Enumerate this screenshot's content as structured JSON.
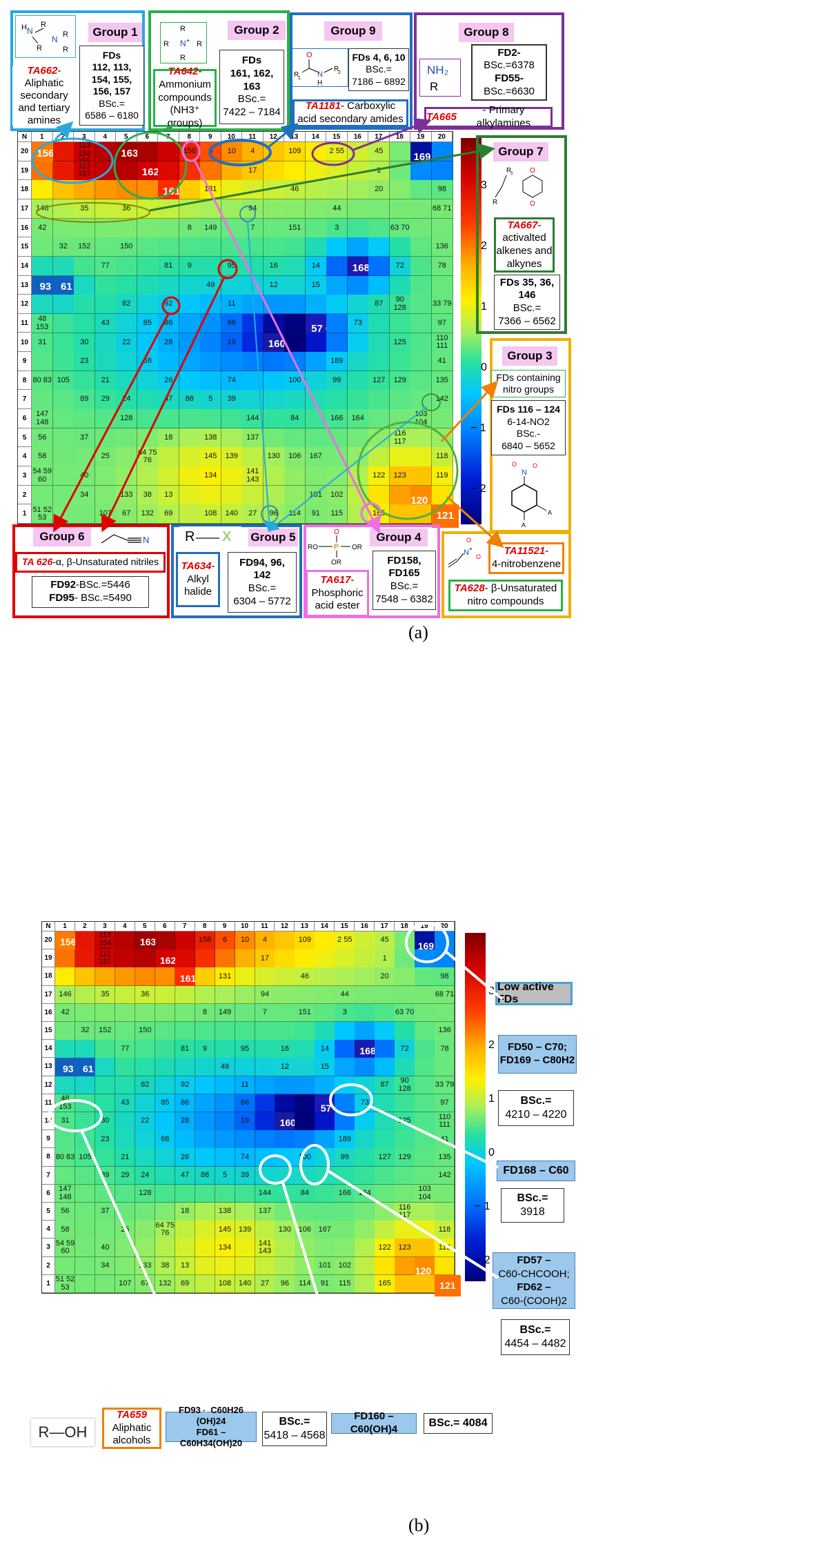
{
  "captions": {
    "a": "(a)",
    "b": "(b)"
  },
  "grid_cells": [
    [
      "N",
      "1",
      "2",
      "3",
      "4",
      "5",
      "6",
      "7",
      "8",
      "9",
      "10",
      "11",
      "12",
      "13",
      "14",
      "15",
      "16",
      "17",
      "18",
      "19",
      "20"
    ],
    [
      "20",
      "156",
      "",
      "113 154 155",
      "",
      "163",
      "",
      "",
      "158",
      "6",
      "10",
      "4",
      "",
      "109",
      "",
      "2 55",
      "",
      "45",
      "",
      "169 50",
      ""
    ],
    [
      "19",
      "",
      "",
      "112 157",
      "",
      "",
      "162",
      "",
      "",
      "",
      "",
      "17",
      "",
      "",
      "",
      "",
      "",
      "1",
      "",
      "",
      ""
    ],
    [
      "18",
      "",
      "",
      "",
      "",
      "",
      "",
      "161",
      "",
      "131",
      "",
      "",
      "",
      "46",
      "",
      "",
      "",
      "20",
      "",
      "",
      "98"
    ],
    [
      "17",
      "146",
      "",
      "35",
      "",
      "36",
      "",
      "",
      "",
      "",
      "",
      "94",
      "",
      "",
      "",
      "44",
      "",
      "",
      "",
      "",
      "68 71"
    ],
    [
      "16",
      "42",
      "",
      "",
      "",
      "",
      "",
      "",
      "8",
      "149",
      "",
      "7",
      "",
      "151",
      "",
      "3",
      "",
      "",
      "63 70",
      "",
      ""
    ],
    [
      "15",
      "",
      "32",
      "152",
      "",
      "150",
      "",
      "",
      "",
      "",
      "",
      "",
      "",
      "",
      "",
      "",
      "",
      "",
      "",
      "",
      "136"
    ],
    [
      "14",
      "",
      "",
      "",
      "77",
      "",
      "",
      "81",
      "9",
      "",
      "95",
      "",
      "16",
      "",
      "14",
      "",
      "168",
      "",
      "72",
      "",
      "78"
    ],
    [
      "13",
      "93",
      "61",
      "",
      "",
      "",
      "",
      "",
      "",
      "49",
      "",
      "",
      "12",
      "",
      "15",
      "",
      "",
      "",
      "",
      "",
      ""
    ],
    [
      "12",
      "",
      "",
      "",
      "",
      "82",
      "",
      "92",
      "",
      "",
      "11",
      "",
      "",
      "",
      "",
      "",
      "",
      "87",
      "90 128",
      "",
      "33 79"
    ],
    [
      "11",
      "48 153",
      "",
      "",
      "43",
      "",
      "85",
      "86",
      "",
      "",
      "66",
      "",
      "",
      "",
      "57 62",
      "",
      "73",
      "",
      "",
      "",
      "97"
    ],
    [
      "10",
      "31",
      "",
      "30",
      "",
      "22",
      "",
      "28",
      "",
      "",
      "19",
      "",
      "160",
      "",
      "",
      "",
      "",
      "",
      "125",
      "",
      "110 111"
    ],
    [
      "9",
      "",
      "",
      "23",
      "",
      "",
      "68",
      "",
      "",
      "",
      "",
      "",
      "",
      "",
      "",
      "189",
      "",
      "",
      "",
      "",
      "41"
    ],
    [
      "8",
      "80 83",
      "105",
      "",
      "21",
      "",
      "",
      "26",
      "",
      "",
      "74",
      "",
      "",
      "100",
      "",
      "99",
      "",
      "127",
      "129",
      "",
      "135"
    ],
    [
      "7",
      "",
      "",
      "89",
      "29",
      "24",
      "",
      "47",
      "88",
      "5",
      "39",
      "",
      "",
      "",
      "",
      "",
      "",
      "",
      "",
      "",
      "142"
    ],
    [
      "6",
      "147 148",
      "",
      "",
      "",
      "128",
      "",
      "",
      "",
      "",
      "",
      "144",
      "",
      "84",
      "",
      "166",
      "164",
      "",
      "",
      "103 104",
      ""
    ],
    [
      "5",
      "56",
      "",
      "37",
      "",
      "",
      "",
      "18",
      "",
      "138",
      "",
      "137",
      "",
      "",
      "",
      "",
      "",
      "",
      "116 117",
      "",
      ""
    ],
    [
      "4",
      "58",
      "",
      "",
      "25",
      "",
      "64 75 76",
      "",
      "",
      "145",
      "139",
      "",
      "130",
      "106",
      "167",
      "",
      "",
      "",
      "",
      "",
      "118"
    ],
    [
      "3",
      "54 59 60",
      "",
      "40",
      "",
      "",
      "",
      "",
      "",
      "134",
      "",
      "141 143",
      "",
      "",
      "",
      "",
      "",
      "122",
      "123",
      "",
      "119"
    ],
    [
      "2",
      "",
      "",
      "34",
      "",
      "133",
      "38",
      "13",
      "",
      "",
      "",
      "",
      "",
      "",
      "101",
      "102",
      "",
      "",
      "",
      "120 124",
      ""
    ],
    [
      "1",
      "51 52 53",
      "",
      "",
      "107",
      "67",
      "132",
      "69",
      "",
      "108",
      "140",
      "27",
      "96",
      "114",
      "91",
      "115",
      "",
      "165",
      "",
      "",
      "121"
    ]
  ],
  "colorbar": {
    "ticks": [
      "3",
      "2",
      "1",
      "0",
      "− 1",
      "− 2"
    ],
    "min": -2.6,
    "max": 3.9
  },
  "panel_a": {
    "group1": {
      "tag": "Group 1",
      "fds": [
        "FDs",
        "112, 113,",
        "154, 155,",
        "156, 157"
      ],
      "bsc": [
        "BSc.=",
        "6586 – 6180"
      ],
      "ta_code": "TA662",
      "ta_text": [
        "-",
        "Aliphatic",
        "secondary",
        "and tertiary",
        "amines"
      ]
    },
    "group2": {
      "tag": "Group 2",
      "fds": [
        "FDs",
        "161, 162,",
        "163"
      ],
      "bsc": [
        "BSc.=",
        "7422 – 7184"
      ],
      "ta_code": "TA642",
      "ta_text": [
        "-",
        "Ammonium",
        "compounds",
        "(NH3⁺ groups)"
      ]
    },
    "group9": {
      "tag": "Group 9",
      "fds": "FDs 4, 6, 10",
      "bsc": [
        "BSc.=",
        "7186 – 6892"
      ],
      "ta_code": "TA1181",
      "ta_text": [
        "- Carboxylic",
        "acid secondary amides"
      ]
    },
    "group8": {
      "tag": "Group 8",
      "fd_a": "FD2-",
      "bsc_a": "BSc.=6378",
      "fd_b": "FD55-",
      "bsc_b": "BSc.=6630",
      "ta_code": "TA665",
      "ta_text": "- Primary alkylamines",
      "struct_label": "NH₂",
      "struct_r": "R"
    },
    "group7": {
      "tag": "Group 7",
      "ta_code": "TA667",
      "ta_text": [
        "-",
        "activalted",
        "alkenes and",
        "alkynes"
      ],
      "fds": [
        "FDs 35, 36,",
        "146"
      ],
      "bsc": [
        "BSc.=",
        "7366 – 6562"
      ]
    },
    "group3": {
      "tag": "Group 3",
      "desc": [
        "FDs containing",
        "nitro groups"
      ],
      "fds": "FDs 116 – 124",
      "sub": "6-14-NO2",
      "bsc": [
        "BSc.-",
        "6840 – 5652"
      ]
    },
    "group6": {
      "tag": "Group 6",
      "ta_code": "TA 626",
      "ta_text": "-α, β-Unsaturated  nitriles",
      "fd_a": "FD92",
      "bsc_a": "-BSc.=5446",
      "fd_b": "FD95",
      "bsc_b": "- BSc.=5490",
      "struct_n": "N"
    },
    "group5": {
      "tag": "Group 5",
      "ta_code": "TA634",
      "ta_text": [
        "-",
        "Alkyl",
        "halide"
      ],
      "fds": [
        "FD94, 96,",
        "142"
      ],
      "bsc": [
        "BSc.=",
        "6304 – 5772"
      ],
      "struct_r": "R",
      "struct_x": "X"
    },
    "group4": {
      "tag": "Group 4",
      "ta_code": "TA617",
      "ta_text": [
        "-",
        "Phosphoric",
        "acid ester"
      ],
      "fds": [
        "FD158,",
        "FD165"
      ],
      "bsc": [
        "BSc.=",
        "7548 – 6382"
      ]
    },
    "nitro": {
      "ta11521_code": "TA11521",
      "ta11521_text": [
        "-",
        "4-nitrobenzene"
      ],
      "ta628_code": "TA628",
      "ta628_text": [
        "- β-Unsaturated",
        "nitro compounds"
      ]
    }
  },
  "panel_b": {
    "low_active": "Low active FDs",
    "fd50_169": {
      "line1": "FD50 – C70;",
      "line2": "FD169 – C80H2"
    },
    "bsc_50_169": [
      "BSc.=",
      "4210 – 4220"
    ],
    "fd168": "FD168 – C60",
    "bsc_168": [
      "BSc.=",
      "3918"
    ],
    "fd57_62": {
      "line1": "FD57 –",
      "line2": "C60-CHCOOH;",
      "line3": "FD62 –",
      "line4": "C60-(COOH)2"
    },
    "bsc_57_62": [
      "BSc.=",
      "4454 – 4482"
    ],
    "fd93_61": {
      "line1": "FD93 – C60H26 (OH)24",
      "line2": "FD61 – C60H34(OH)20"
    },
    "bsc_93_61": [
      "BSc.=",
      "5418 – 4568"
    ],
    "fd160": "FD160 – C60(OH)4",
    "bsc_160": "BSc.= 4084",
    "ta659_code": "TA659",
    "ta659_text": [
      "Aliphatic",
      "alcohols"
    ],
    "struct": "R—OH"
  }
}
